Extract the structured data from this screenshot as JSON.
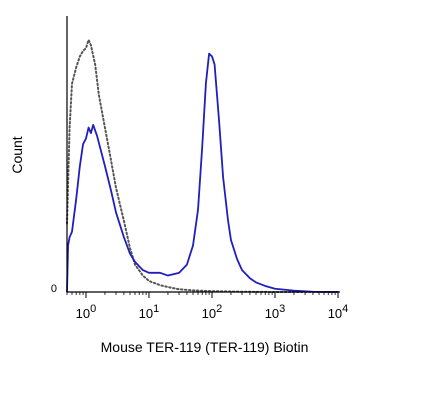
{
  "chart_data": {
    "type": "line",
    "title": "",
    "xlabel": "Mouse TER-119 (TER-119) Biotin",
    "ylabel": "Count",
    "x_scale": "log",
    "xlim": [
      0.5,
      10000
    ],
    "x_ticks": [
      {
        "value": 1,
        "base": "10",
        "exp": "0"
      },
      {
        "value": 10,
        "base": "10",
        "exp": "1"
      },
      {
        "value": 100,
        "base": "10",
        "exp": "2"
      },
      {
        "value": 1000,
        "base": "10",
        "exp": "3"
      },
      {
        "value": 10000,
        "base": "10",
        "exp": "4"
      }
    ],
    "y_zero_label": "0",
    "ylim": [
      0,
      100
    ],
    "grid": false,
    "series": [
      {
        "style": "dotted",
        "color": "#555555",
        "points": [
          [
            0.5,
            25
          ],
          [
            0.55,
            60
          ],
          [
            0.6,
            76
          ],
          [
            0.7,
            82
          ],
          [
            0.8,
            86
          ],
          [
            0.9,
            88
          ],
          [
            1.0,
            89
          ],
          [
            1.1,
            92
          ],
          [
            1.2,
            90
          ],
          [
            1.4,
            83
          ],
          [
            1.6,
            72
          ],
          [
            2.0,
            60
          ],
          [
            2.5,
            48
          ],
          [
            3.0,
            38
          ],
          [
            4.0,
            26
          ],
          [
            5.0,
            16
          ],
          [
            6.0,
            10
          ],
          [
            8.0,
            6
          ],
          [
            10,
            4
          ],
          [
            15,
            2.5
          ],
          [
            20,
            1.8
          ],
          [
            30,
            1.0
          ],
          [
            50,
            0.6
          ],
          [
            100,
            0.3
          ],
          [
            300,
            0.1
          ],
          [
            1000,
            0
          ],
          [
            10000,
            0
          ]
        ]
      },
      {
        "style": "solid",
        "color": "#1f1fbf",
        "points": [
          [
            0.5,
            0
          ],
          [
            0.52,
            17
          ],
          [
            0.55,
            20
          ],
          [
            0.6,
            22
          ],
          [
            0.7,
            34
          ],
          [
            0.8,
            46
          ],
          [
            0.9,
            54
          ],
          [
            1.0,
            56
          ],
          [
            1.1,
            60
          ],
          [
            1.2,
            58
          ],
          [
            1.3,
            61
          ],
          [
            1.5,
            57
          ],
          [
            1.8,
            50
          ],
          [
            2.0,
            46
          ],
          [
            2.5,
            37
          ],
          [
            3.0,
            29
          ],
          [
            4.0,
            20
          ],
          [
            5.0,
            14
          ],
          [
            6.0,
            11
          ],
          [
            8.0,
            8
          ],
          [
            10,
            7
          ],
          [
            15,
            7
          ],
          [
            20,
            6
          ],
          [
            30,
            7
          ],
          [
            40,
            10
          ],
          [
            50,
            17
          ],
          [
            60,
            30
          ],
          [
            70,
            53
          ],
          [
            80,
            76
          ],
          [
            90,
            87
          ],
          [
            100,
            86
          ],
          [
            110,
            83
          ],
          [
            130,
            62
          ],
          [
            150,
            42
          ],
          [
            180,
            26
          ],
          [
            200,
            19
          ],
          [
            250,
            12
          ],
          [
            300,
            8
          ],
          [
            400,
            5
          ],
          [
            500,
            3.5
          ],
          [
            700,
            2.2
          ],
          [
            1000,
            1.2
          ],
          [
            2000,
            0.5
          ],
          [
            4000,
            0.1
          ],
          [
            10000,
            0
          ]
        ]
      }
    ]
  }
}
